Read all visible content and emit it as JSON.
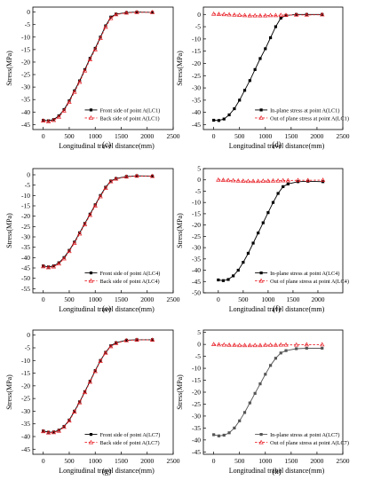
{
  "panel_labels": [
    "(c)",
    "(d)",
    "(e)",
    "(f)",
    "(g)",
    "(h)"
  ],
  "chart_data": [
    {
      "type": "line",
      "panel": "(c)",
      "xlabel": "Longitudinal travel distance(mm)",
      "ylabel": "Stress(MPa)",
      "xlim": [
        -200,
        2500
      ],
      "ylim": [
        -47,
        2
      ],
      "xticks": [
        0,
        500,
        1000,
        1500,
        2000,
        2500
      ],
      "yticks": [
        0,
        -5,
        -10,
        -15,
        -20,
        -25,
        -30,
        -35,
        -40,
        -45
      ],
      "legend_position": "lower-right",
      "series": [
        {
          "name": "Front side of point A(LC1)",
          "color": "#000000",
          "marker": "square",
          "dashed": false,
          "x": [
            0,
            100,
            200,
            300,
            400,
            500,
            600,
            700,
            800,
            900,
            1000,
            1100,
            1200,
            1300,
            1400,
            1600,
            1800,
            2100
          ],
          "y": [
            -43.3,
            -43.5,
            -43,
            -41.5,
            -39,
            -35.5,
            -31.5,
            -27.5,
            -23,
            -18.5,
            -14.5,
            -10,
            -5.5,
            -2,
            -0.8,
            -0.2,
            0,
            -0.1
          ]
        },
        {
          "name": "Back side of point A(LC1)",
          "color": "#e8232a",
          "marker": "triangle",
          "dashed": true,
          "x": [
            0,
            100,
            200,
            300,
            400,
            500,
            600,
            700,
            800,
            900,
            1000,
            1100,
            1200,
            1300,
            1400,
            1600,
            1800,
            2100
          ],
          "y": [
            -43.5,
            -43.8,
            -43.3,
            -42,
            -39.5,
            -36,
            -32,
            -28,
            -23.5,
            -19,
            -15,
            -10.5,
            -6,
            -2.5,
            -1,
            -0.3,
            -0.1,
            -0.1
          ]
        }
      ]
    },
    {
      "type": "line",
      "panel": "(d)",
      "xlabel": "Longitudinal travel distance(mm)",
      "ylabel": "Stress(MPa)",
      "xlim": [
        -200,
        2500
      ],
      "ylim": [
        -47,
        3
      ],
      "xticks": [
        0,
        500,
        1000,
        1500,
        2000,
        2500
      ],
      "yticks": [
        0,
        -5,
        -10,
        -15,
        -20,
        -25,
        -30,
        -35,
        -40,
        -45
      ],
      "legend_position": "lower-right",
      "series": [
        {
          "name": "In-plane stress at point A(LC1)",
          "color": "#000000",
          "marker": "square",
          "dashed": false,
          "x": [
            0,
            100,
            200,
            300,
            400,
            500,
            600,
            700,
            800,
            900,
            1000,
            1100,
            1200,
            1300,
            1400,
            1600,
            1800,
            2100
          ],
          "y": [
            -43.2,
            -43.3,
            -42.7,
            -41,
            -38.5,
            -35,
            -31,
            -27,
            -22.5,
            -18,
            -14,
            -9.5,
            -5,
            -1.5,
            -0.4,
            0,
            0,
            0
          ]
        },
        {
          "name": "Out of plane stress at point A(LC1)",
          "color": "#e8232a",
          "marker": "triangle",
          "dashed": true,
          "x": [
            0,
            100,
            200,
            300,
            400,
            500,
            600,
            700,
            800,
            900,
            1000,
            1100,
            1200,
            1300,
            1400,
            1600,
            1800,
            2100
          ],
          "y": [
            0.2,
            0.1,
            0,
            -0.1,
            -0.2,
            -0.3,
            -0.4,
            -0.5,
            -0.5,
            -0.5,
            -0.5,
            -0.4,
            -0.4,
            -0.3,
            -0.3,
            -0.2,
            -0.2,
            -0.1
          ]
        }
      ]
    },
    {
      "type": "line",
      "panel": "(e)",
      "xlabel": "Longitudinal travel distance(mm)",
      "ylabel": "Stress(MPa)",
      "xlim": [
        -200,
        2500
      ],
      "ylim": [
        -57,
        3
      ],
      "xticks": [
        0,
        500,
        1000,
        1500,
        2000,
        2500
      ],
      "yticks": [
        0,
        -5,
        -10,
        -15,
        -20,
        -25,
        -30,
        -35,
        -40,
        -45,
        -50,
        -55
      ],
      "legend_position": "lower-right",
      "series": [
        {
          "name": "Front side of point A(LC4)",
          "color": "#000000",
          "marker": "square",
          "dashed": false,
          "x": [
            0,
            100,
            200,
            300,
            400,
            500,
            600,
            700,
            800,
            900,
            1000,
            1100,
            1200,
            1300,
            1400,
            1600,
            1800,
            2100
          ],
          "y": [
            -44,
            -44.5,
            -44,
            -42.5,
            -40,
            -36.5,
            -32.5,
            -28,
            -23.5,
            -19,
            -14.5,
            -10,
            -6,
            -3,
            -1.8,
            -0.8,
            -0.5,
            -0.6
          ]
        },
        {
          "name": "Back side of point A(LC4)",
          "color": "#e8232a",
          "marker": "triangle",
          "dashed": true,
          "x": [
            0,
            100,
            200,
            300,
            400,
            500,
            600,
            700,
            800,
            900,
            1000,
            1100,
            1200,
            1300,
            1400,
            1600,
            1800,
            2100
          ],
          "y": [
            -44.3,
            -44.8,
            -44.4,
            -43,
            -40.5,
            -37,
            -33,
            -28.5,
            -24,
            -19.5,
            -15,
            -10.5,
            -6.5,
            -3.3,
            -2,
            -1,
            -0.6,
            -0.7
          ]
        }
      ]
    },
    {
      "type": "line",
      "panel": "(f)",
      "xlabel": "Longitudinal travel distance(mm)",
      "ylabel": "Stress(MPa)",
      "xlim": [
        -300,
        2500
      ],
      "ylim": [
        -50,
        5
      ],
      "xticks": [
        0,
        500,
        1000,
        1500,
        2000
      ],
      "yticks": [
        5,
        0,
        -5,
        -10,
        -15,
        -20,
        -25,
        -30,
        -35,
        -40,
        -45,
        -50
      ],
      "legend_position": "lower-right",
      "series": [
        {
          "name": "In-plane stress at point A(LC4)",
          "color": "#000000",
          "marker": "square",
          "dashed": false,
          "x": [
            0,
            100,
            200,
            300,
            400,
            500,
            600,
            700,
            800,
            900,
            1000,
            1100,
            1200,
            1300,
            1400,
            1600,
            1800,
            2100
          ],
          "y": [
            -44.3,
            -44.6,
            -44.1,
            -42.5,
            -40,
            -36.5,
            -32.5,
            -28,
            -23.5,
            -19,
            -14.5,
            -10,
            -6,
            -3,
            -1.8,
            -0.8,
            -0.6,
            -0.8
          ]
        },
        {
          "name": "Out of plane stress at point A(LC4)",
          "color": "#e8232a",
          "marker": "triangle",
          "dashed": true,
          "x": [
            0,
            100,
            200,
            300,
            400,
            500,
            600,
            700,
            800,
            900,
            1000,
            1100,
            1200,
            1300,
            1400,
            1600,
            1800,
            2100
          ],
          "y": [
            0,
            -0.1,
            -0.2,
            -0.3,
            -0.4,
            -0.5,
            -0.6,
            -0.6,
            -0.6,
            -0.5,
            -0.5,
            -0.4,
            -0.4,
            -0.3,
            -0.3,
            -0.2,
            -0.2,
            -0.1
          ]
        }
      ]
    },
    {
      "type": "line",
      "panel": "(g)",
      "xlabel": "Longitudinal travel distance(mm)",
      "ylabel": "Stress(MPa)",
      "xlim": [
        -200,
        2500
      ],
      "ylim": [
        -47,
        2
      ],
      "xticks": [
        0,
        500,
        1000,
        1500,
        2000,
        2500
      ],
      "yticks": [
        0,
        -5,
        -10,
        -15,
        -20,
        -25,
        -30,
        -35,
        -40,
        -45
      ],
      "legend_position": "lower-right",
      "series": [
        {
          "name": "Front side of point A(LC7)",
          "color": "#000000",
          "marker": "square",
          "dashed": false,
          "x": [
            0,
            100,
            200,
            300,
            400,
            500,
            600,
            700,
            800,
            900,
            1000,
            1100,
            1200,
            1300,
            1400,
            1600,
            1800,
            2100
          ],
          "y": [
            -37.8,
            -38.3,
            -38.2,
            -37.5,
            -36,
            -33.5,
            -30,
            -26.3,
            -22.3,
            -18.2,
            -14,
            -10,
            -6.8,
            -4.2,
            -3,
            -2,
            -1.8,
            -1.8
          ]
        },
        {
          "name": "Back side of point A(LC7)",
          "color": "#e8232a",
          "marker": "triangle",
          "dashed": true,
          "x": [
            0,
            100,
            200,
            300,
            400,
            500,
            600,
            700,
            800,
            900,
            1000,
            1100,
            1200,
            1300,
            1400,
            1600,
            1800,
            2100
          ],
          "y": [
            -38,
            -38.5,
            -38.4,
            -37.8,
            -36.3,
            -33.8,
            -30.3,
            -26.6,
            -22.6,
            -18.5,
            -14.3,
            -10.3,
            -7,
            -4.5,
            -3.2,
            -2.1,
            -1.9,
            -1.9
          ]
        }
      ]
    },
    {
      "type": "line",
      "panel": "(h)",
      "xlabel": "Longitudinal travel distance(mm)",
      "ylabel": "Stress(MPa)",
      "xlim": [
        -200,
        2500
      ],
      "ylim": [
        -46,
        6
      ],
      "xticks": [
        0,
        500,
        1000,
        1500,
        2000,
        2500
      ],
      "yticks": [
        5,
        0,
        -5,
        -10,
        -15,
        -20,
        -25,
        -30,
        -35,
        -40,
        -45
      ],
      "legend_position": "lower-right",
      "series": [
        {
          "name": "In-plane stress at point A(LC7)",
          "color": "#555555",
          "marker": "square",
          "dashed": false,
          "x": [
            0,
            100,
            200,
            300,
            400,
            500,
            600,
            700,
            800,
            900,
            1000,
            1100,
            1200,
            1300,
            1400,
            1600,
            1800,
            2100
          ],
          "y": [
            -37.8,
            -38.3,
            -38,
            -37,
            -35,
            -32,
            -28.5,
            -24.5,
            -20.5,
            -16.5,
            -12.5,
            -8.8,
            -5.8,
            -3.6,
            -2.6,
            -1.8,
            -1.6,
            -1.6
          ]
        },
        {
          "name": "Out of plane stress at point A(LC7)",
          "color": "#e8232a",
          "marker": "triangle",
          "dashed": true,
          "x": [
            0,
            100,
            200,
            300,
            400,
            500,
            600,
            700,
            800,
            900,
            1000,
            1100,
            1200,
            1300,
            1400,
            1600,
            1800,
            2100
          ],
          "y": [
            0,
            -0.1,
            -0.2,
            -0.3,
            -0.3,
            -0.4,
            -0.4,
            -0.4,
            -0.4,
            -0.4,
            -0.3,
            -0.3,
            -0.3,
            -0.2,
            -0.2,
            -0.2,
            -0.1,
            -0.1
          ]
        }
      ]
    }
  ]
}
